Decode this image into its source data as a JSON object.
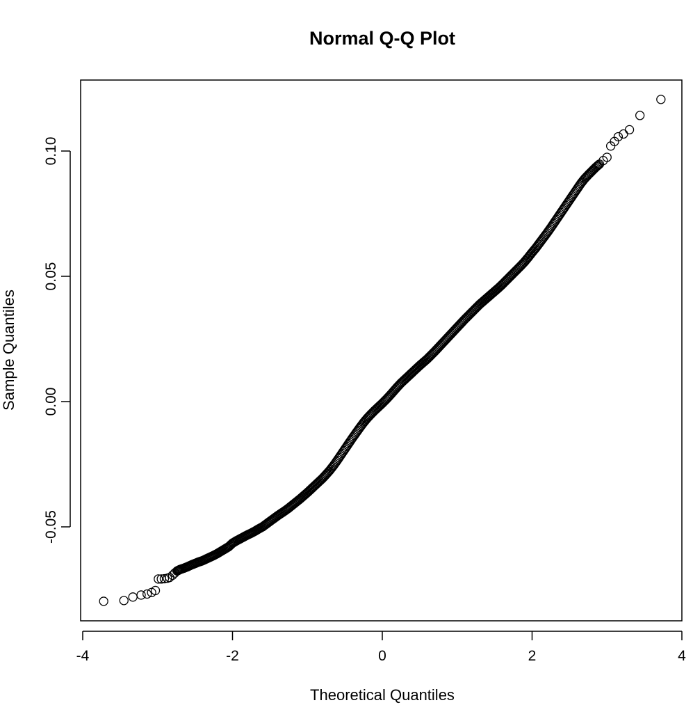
{
  "chart_data": {
    "type": "scatter",
    "title": "Normal Q-Q Plot",
    "xlabel": "Theoretical Quantiles",
    "ylabel": "Sample Quantiles",
    "xlim": [
      -4,
      4
    ],
    "ylim": [
      -0.08,
      0.12
    ],
    "x_ticks": [
      -4,
      -2,
      0,
      2,
      4
    ],
    "x_tick_labels": [
      "-4",
      "-2",
      "0",
      "2",
      "4"
    ],
    "y_ticks": [
      -0.05,
      0.0,
      0.05,
      0.1
    ],
    "y_tick_labels": [
      "-0.05",
      "0.00",
      "0.05",
      "0.10"
    ],
    "grid": false,
    "marker": "open-circle",
    "series": [
      {
        "points": [
          [
            -3.72,
            -0.0797
          ],
          [
            -3.45,
            -0.0794
          ],
          [
            -3.33,
            -0.078
          ],
          [
            -3.22,
            -0.0772
          ],
          [
            -3.14,
            -0.0768
          ],
          [
            -3.08,
            -0.0762
          ],
          [
            -3.03,
            -0.0754
          ],
          [
            -2.99,
            -0.0708
          ],
          [
            -2.95,
            -0.0708
          ],
          [
            -2.91,
            -0.0707
          ],
          [
            -2.87,
            -0.0705
          ],
          [
            -2.84,
            -0.0702
          ],
          [
            -2.8,
            -0.0693
          ],
          [
            -2.77,
            -0.0684
          ],
          [
            -2.74,
            -0.0676
          ],
          [
            -2.7,
            -0.067
          ],
          [
            -2.65,
            -0.0665
          ],
          [
            -2.6,
            -0.0659
          ],
          [
            -2.55,
            -0.0652
          ],
          [
            -2.5,
            -0.0646
          ],
          [
            -2.45,
            -0.064
          ],
          [
            -2.4,
            -0.0635
          ],
          [
            -2.35,
            -0.0628
          ],
          [
            -2.3,
            -0.0621
          ],
          [
            -2.25,
            -0.0614
          ],
          [
            -2.2,
            -0.0606
          ],
          [
            -2.15,
            -0.0597
          ],
          [
            -2.1,
            -0.0588
          ],
          [
            -2.05,
            -0.0579
          ],
          [
            -2.0,
            -0.0565
          ],
          [
            -1.95,
            -0.0556
          ],
          [
            -1.9,
            -0.0548
          ],
          [
            -1.85,
            -0.054
          ],
          [
            -1.8,
            -0.0532
          ],
          [
            -1.75,
            -0.0525
          ],
          [
            -1.7,
            -0.0517
          ],
          [
            -1.65,
            -0.0508
          ],
          [
            -1.6,
            -0.05
          ],
          [
            -1.55,
            -0.0489
          ],
          [
            -1.5,
            -0.0478
          ],
          [
            -1.45,
            -0.0467
          ],
          [
            -1.4,
            -0.0456
          ],
          [
            -1.35,
            -0.0446
          ],
          [
            -1.3,
            -0.0436
          ],
          [
            -1.25,
            -0.0425
          ],
          [
            -1.2,
            -0.0413
          ],
          [
            -1.15,
            -0.0401
          ],
          [
            -1.1,
            -0.0389
          ],
          [
            -1.05,
            -0.0376
          ],
          [
            -1.0,
            -0.0363
          ],
          [
            -0.95,
            -0.0349
          ],
          [
            -0.9,
            -0.0335
          ],
          [
            -0.85,
            -0.0321
          ],
          [
            -0.8,
            -0.0307
          ],
          [
            -0.75,
            -0.0291
          ],
          [
            -0.7,
            -0.0274
          ],
          [
            -0.65,
            -0.0255
          ],
          [
            -0.6,
            -0.0234
          ],
          [
            -0.55,
            -0.0212
          ],
          [
            -0.5,
            -0.019
          ],
          [
            -0.45,
            -0.0168
          ],
          [
            -0.4,
            -0.0146
          ],
          [
            -0.35,
            -0.0125
          ],
          [
            -0.3,
            -0.0104
          ],
          [
            -0.25,
            -0.0084
          ],
          [
            -0.2,
            -0.0066
          ],
          [
            -0.15,
            -0.005
          ],
          [
            -0.1,
            -0.0035
          ],
          [
            -0.05,
            -0.0021
          ],
          [
            0.0,
            -0.0007
          ],
          [
            0.05,
            0.0008
          ],
          [
            0.1,
            0.0024
          ],
          [
            0.15,
            0.0041
          ],
          [
            0.2,
            0.0058
          ],
          [
            0.25,
            0.0074
          ],
          [
            0.3,
            0.0088
          ],
          [
            0.35,
            0.0102
          ],
          [
            0.4,
            0.0116
          ],
          [
            0.45,
            0.013
          ],
          [
            0.5,
            0.0144
          ],
          [
            0.55,
            0.0157
          ],
          [
            0.6,
            0.017
          ],
          [
            0.65,
            0.0185
          ],
          [
            0.7,
            0.02
          ],
          [
            0.75,
            0.0216
          ],
          [
            0.8,
            0.0232
          ],
          [
            0.85,
            0.0248
          ],
          [
            0.9,
            0.0264
          ],
          [
            0.95,
            0.028
          ],
          [
            1.0,
            0.0296
          ],
          [
            1.05,
            0.0312
          ],
          [
            1.1,
            0.0328
          ],
          [
            1.15,
            0.0343
          ],
          [
            1.2,
            0.0358
          ],
          [
            1.25,
            0.0373
          ],
          [
            1.3,
            0.0388
          ],
          [
            1.35,
            0.0401
          ],
          [
            1.4,
            0.0414
          ],
          [
            1.45,
            0.0427
          ],
          [
            1.5,
            0.044
          ],
          [
            1.55,
            0.0453
          ],
          [
            1.6,
            0.0467
          ],
          [
            1.65,
            0.0482
          ],
          [
            1.7,
            0.0497
          ],
          [
            1.75,
            0.0512
          ],
          [
            1.8,
            0.0527
          ],
          [
            1.85,
            0.0542
          ],
          [
            1.9,
            0.0558
          ],
          [
            1.95,
            0.0576
          ],
          [
            2.0,
            0.0595
          ],
          [
            2.05,
            0.0613
          ],
          [
            2.1,
            0.0633
          ],
          [
            2.15,
            0.0653
          ],
          [
            2.2,
            0.0673
          ],
          [
            2.25,
            0.0694
          ],
          [
            2.3,
            0.0716
          ],
          [
            2.35,
            0.0738
          ],
          [
            2.4,
            0.076
          ],
          [
            2.45,
            0.0782
          ],
          [
            2.5,
            0.0804
          ],
          [
            2.55,
            0.0826
          ],
          [
            2.6,
            0.0848
          ],
          [
            2.65,
            0.087
          ],
          [
            2.7,
            0.0889
          ],
          [
            2.75,
            0.0905
          ],
          [
            2.8,
            0.092
          ],
          [
            2.85,
            0.0935
          ],
          [
            2.9,
            0.0948
          ],
          [
            2.95,
            0.0962
          ],
          [
            3.0,
            0.0975
          ],
          [
            3.05,
            0.102
          ],
          [
            3.1,
            0.1038
          ],
          [
            3.15,
            0.1057
          ],
          [
            3.22,
            0.1068
          ],
          [
            3.3,
            0.1085
          ],
          [
            3.44,
            0.1142
          ],
          [
            3.72,
            0.1206
          ]
        ]
      }
    ]
  }
}
